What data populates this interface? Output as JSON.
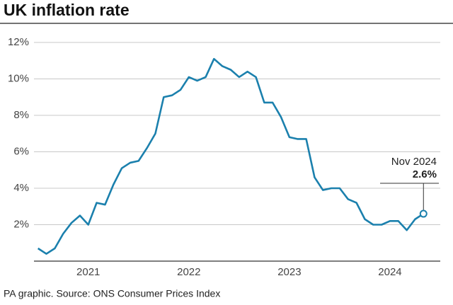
{
  "chart_data": {
    "type": "line",
    "title": "UK inflation rate",
    "source": "PA graphic. Source: ONS Consumer Prices Index",
    "x": [
      2021,
      2021.083,
      2021.167,
      2021.25,
      2021.333,
      2021.417,
      2021.5,
      2021.583,
      2021.667,
      2021.75,
      2021.833,
      2021.917,
      2022,
      2022.083,
      2022.167,
      2022.25,
      2022.333,
      2022.417,
      2022.5,
      2022.583,
      2022.667,
      2022.75,
      2022.833,
      2022.917,
      2023,
      2023.083,
      2023.167,
      2023.25,
      2023.333,
      2023.417,
      2023.5,
      2023.583,
      2023.667,
      2023.75,
      2023.833,
      2023.917,
      2024,
      2024.083,
      2024.167,
      2024.25,
      2024.333,
      2024.417,
      2024.5,
      2024.583,
      2024.667,
      2024.75,
      2024.833
    ],
    "values": [
      0.7,
      0.4,
      0.7,
      1.5,
      2.1,
      2.5,
      2.0,
      3.2,
      3.1,
      4.2,
      5.1,
      5.4,
      5.5,
      6.2,
      7.0,
      9.0,
      9.1,
      9.4,
      10.1,
      9.9,
      10.1,
      11.1,
      10.7,
      10.5,
      10.1,
      10.4,
      10.1,
      8.7,
      8.7,
      7.9,
      6.8,
      6.7,
      6.7,
      4.6,
      3.9,
      4.0,
      4.0,
      3.4,
      3.2,
      2.3,
      2.0,
      2.0,
      2.2,
      2.2,
      1.7,
      2.3,
      2.6
    ],
    "value_labels": [
      null,
      null,
      null,
      null,
      null,
      null,
      null,
      null,
      null,
      null,
      null,
      null,
      null,
      null,
      null,
      null,
      null,
      null,
      null,
      null,
      null,
      null,
      null,
      null,
      null,
      null,
      null,
      null,
      null,
      null,
      null,
      null,
      null,
      null,
      null,
      null,
      null,
      null,
      null,
      null,
      null,
      null,
      null,
      null,
      null,
      null,
      "2.6%"
    ],
    "annotation": "Nov 2024",
    "color": "#1b80ad",
    "xlim": [
      2020.96,
      2025.0
    ],
    "xticks": [
      {
        "value": 2021.5,
        "label": "2021"
      },
      {
        "value": 2022.5,
        "label": "2022"
      },
      {
        "value": 2023.5,
        "label": "2023"
      },
      {
        "value": 2024.5,
        "label": "2024"
      }
    ],
    "ylim": [
      0,
      12
    ],
    "yticks": [
      {
        "value": 2,
        "label": "2%"
      },
      {
        "value": 4,
        "label": "4%"
      },
      {
        "value": 6,
        "label": "6%"
      },
      {
        "value": 8,
        "label": "8%"
      },
      {
        "value": 10,
        "label": "10%"
      },
      {
        "value": 12,
        "label": "12%"
      }
    ],
    "grid": true
  }
}
